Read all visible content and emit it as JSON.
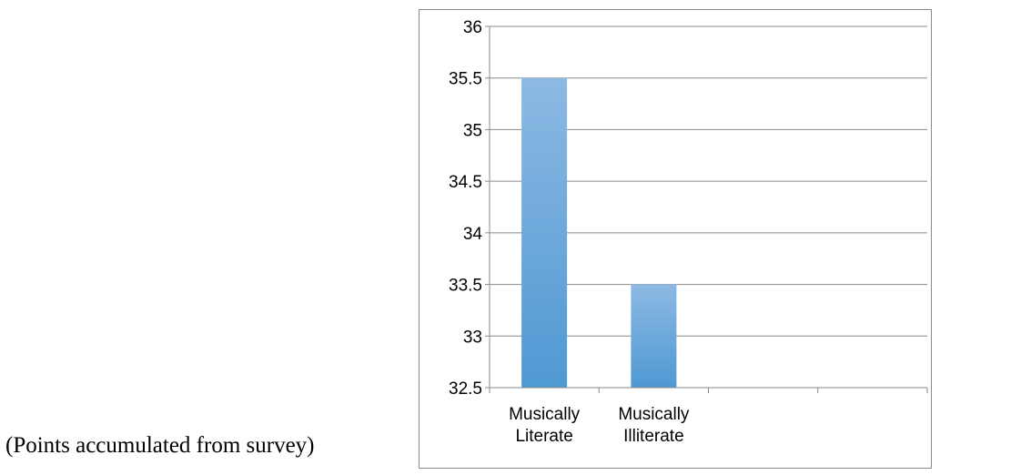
{
  "caption": "(Points accumulated from survey)",
  "chart_data": {
    "type": "bar",
    "categories": [
      [
        "Musically",
        "Literate"
      ],
      [
        "Musically",
        "Illiterate"
      ],
      [
        "",
        ""
      ],
      [
        "",
        ""
      ]
    ],
    "values": [
      35.5,
      33.5,
      null,
      null
    ],
    "ylim": [
      32.5,
      36
    ],
    "yticks": [
      "32.5",
      "33",
      "33.5",
      "34",
      "34.5",
      "35",
      "35.5",
      "36"
    ],
    "ytick_values": [
      32.5,
      33,
      33.5,
      34,
      34.5,
      35,
      35.5,
      36
    ],
    "grid": true,
    "legend": "none",
    "colors": {
      "bar_top": "#8db9e3",
      "bar_bottom": "#4f99d3",
      "grid": "#898989",
      "frame": "#898989"
    },
    "title": "",
    "xlabel": "",
    "ylabel": ""
  }
}
